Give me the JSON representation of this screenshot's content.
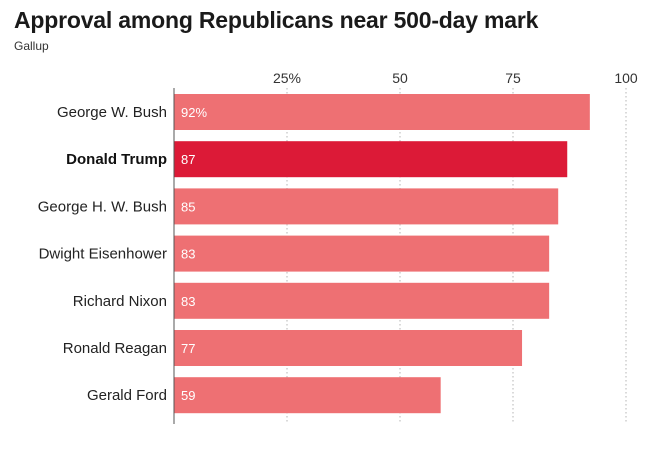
{
  "header": {
    "title": "Approval among Republicans near 500-day mark",
    "source": "Gallup"
  },
  "chart_data": {
    "type": "bar",
    "orientation": "horizontal",
    "categories": [
      "George W. Bush",
      "Donald Trump",
      "George H. W. Bush",
      "Dwight Eisenhower",
      "Richard Nixon",
      "Ronald Reagan",
      "Gerald Ford"
    ],
    "values": [
      92,
      87,
      85,
      83,
      83,
      77,
      59
    ],
    "value_labels": [
      "92%",
      "87",
      "85",
      "83",
      "83",
      "77",
      "59"
    ],
    "highlight": "Donald Trump",
    "xlim": [
      0,
      100
    ],
    "ticks": [
      25,
      50,
      75,
      100
    ],
    "tick_labels": [
      "25%",
      "50",
      "75",
      "100"
    ],
    "grid": "vertical dotted",
    "colors": {
      "bar": "#ee7073",
      "highlight": "#dc1a37"
    }
  }
}
